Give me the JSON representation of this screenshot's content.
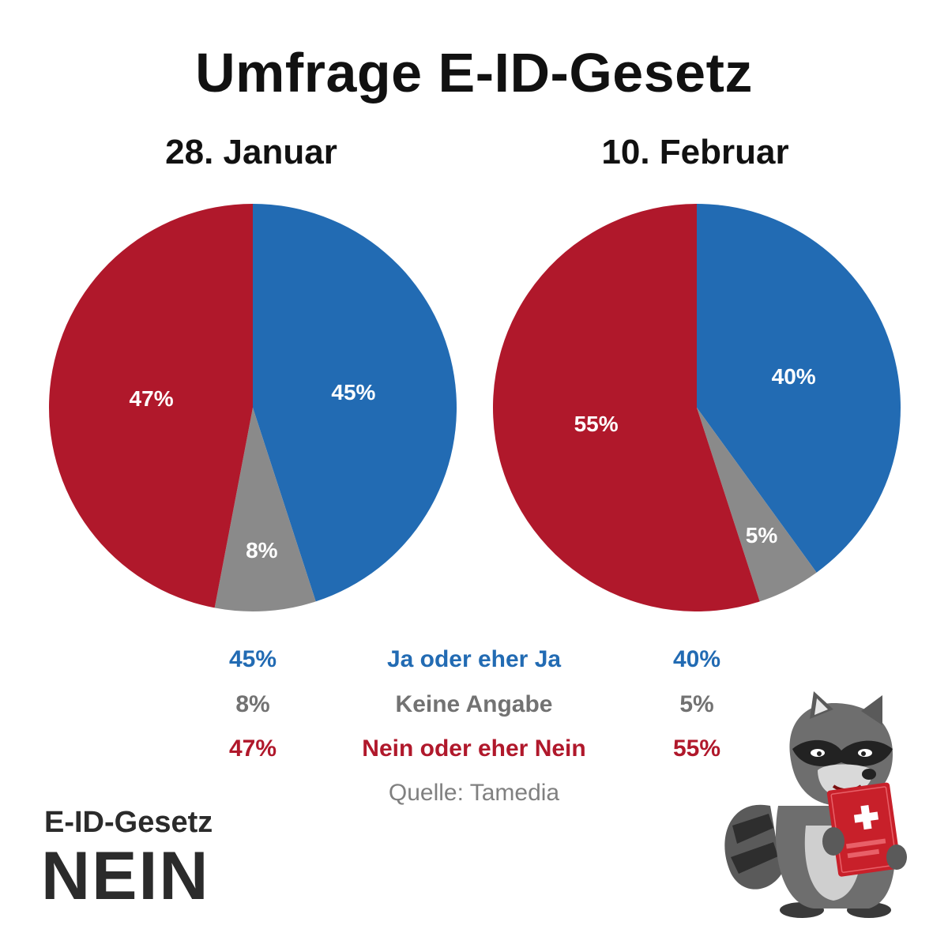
{
  "title": "Umfrage E-ID-Gesetz",
  "colors": {
    "ja": "#226bb3",
    "keine": "#8a8a8a",
    "nein": "#b0182b"
  },
  "chart_data": [
    {
      "type": "pie",
      "title": "28. Januar",
      "categories": [
        "Ja oder eher Ja",
        "Keine Angabe",
        "Nein oder eher Nein"
      ],
      "values": [
        45,
        8,
        47
      ],
      "labels": [
        "45%",
        "8%",
        "47%"
      ]
    },
    {
      "type": "pie",
      "title": "10. Februar",
      "categories": [
        "Ja oder eher Ja",
        "Keine Angabe",
        "Nein oder eher Nein"
      ],
      "values": [
        40,
        5,
        55
      ],
      "labels": [
        "40%",
        "5%",
        "55%"
      ]
    }
  ],
  "legend": [
    {
      "left": "45%",
      "label": "Ja oder eher Ja",
      "right": "40%",
      "color": "#226bb3"
    },
    {
      "left": "8%",
      "label": "Keine Angabe",
      "right": "5%",
      "color": "#727272"
    },
    {
      "left": "47%",
      "label": "Nein oder eher Nein",
      "right": "55%",
      "color": "#b0182b"
    }
  ],
  "source": "Quelle: Tamedia",
  "logo": {
    "line1": "E-ID-Gesetz",
    "line2": "NEIN"
  },
  "mascot_icon": "raccoon-holding-red-passport-icon"
}
